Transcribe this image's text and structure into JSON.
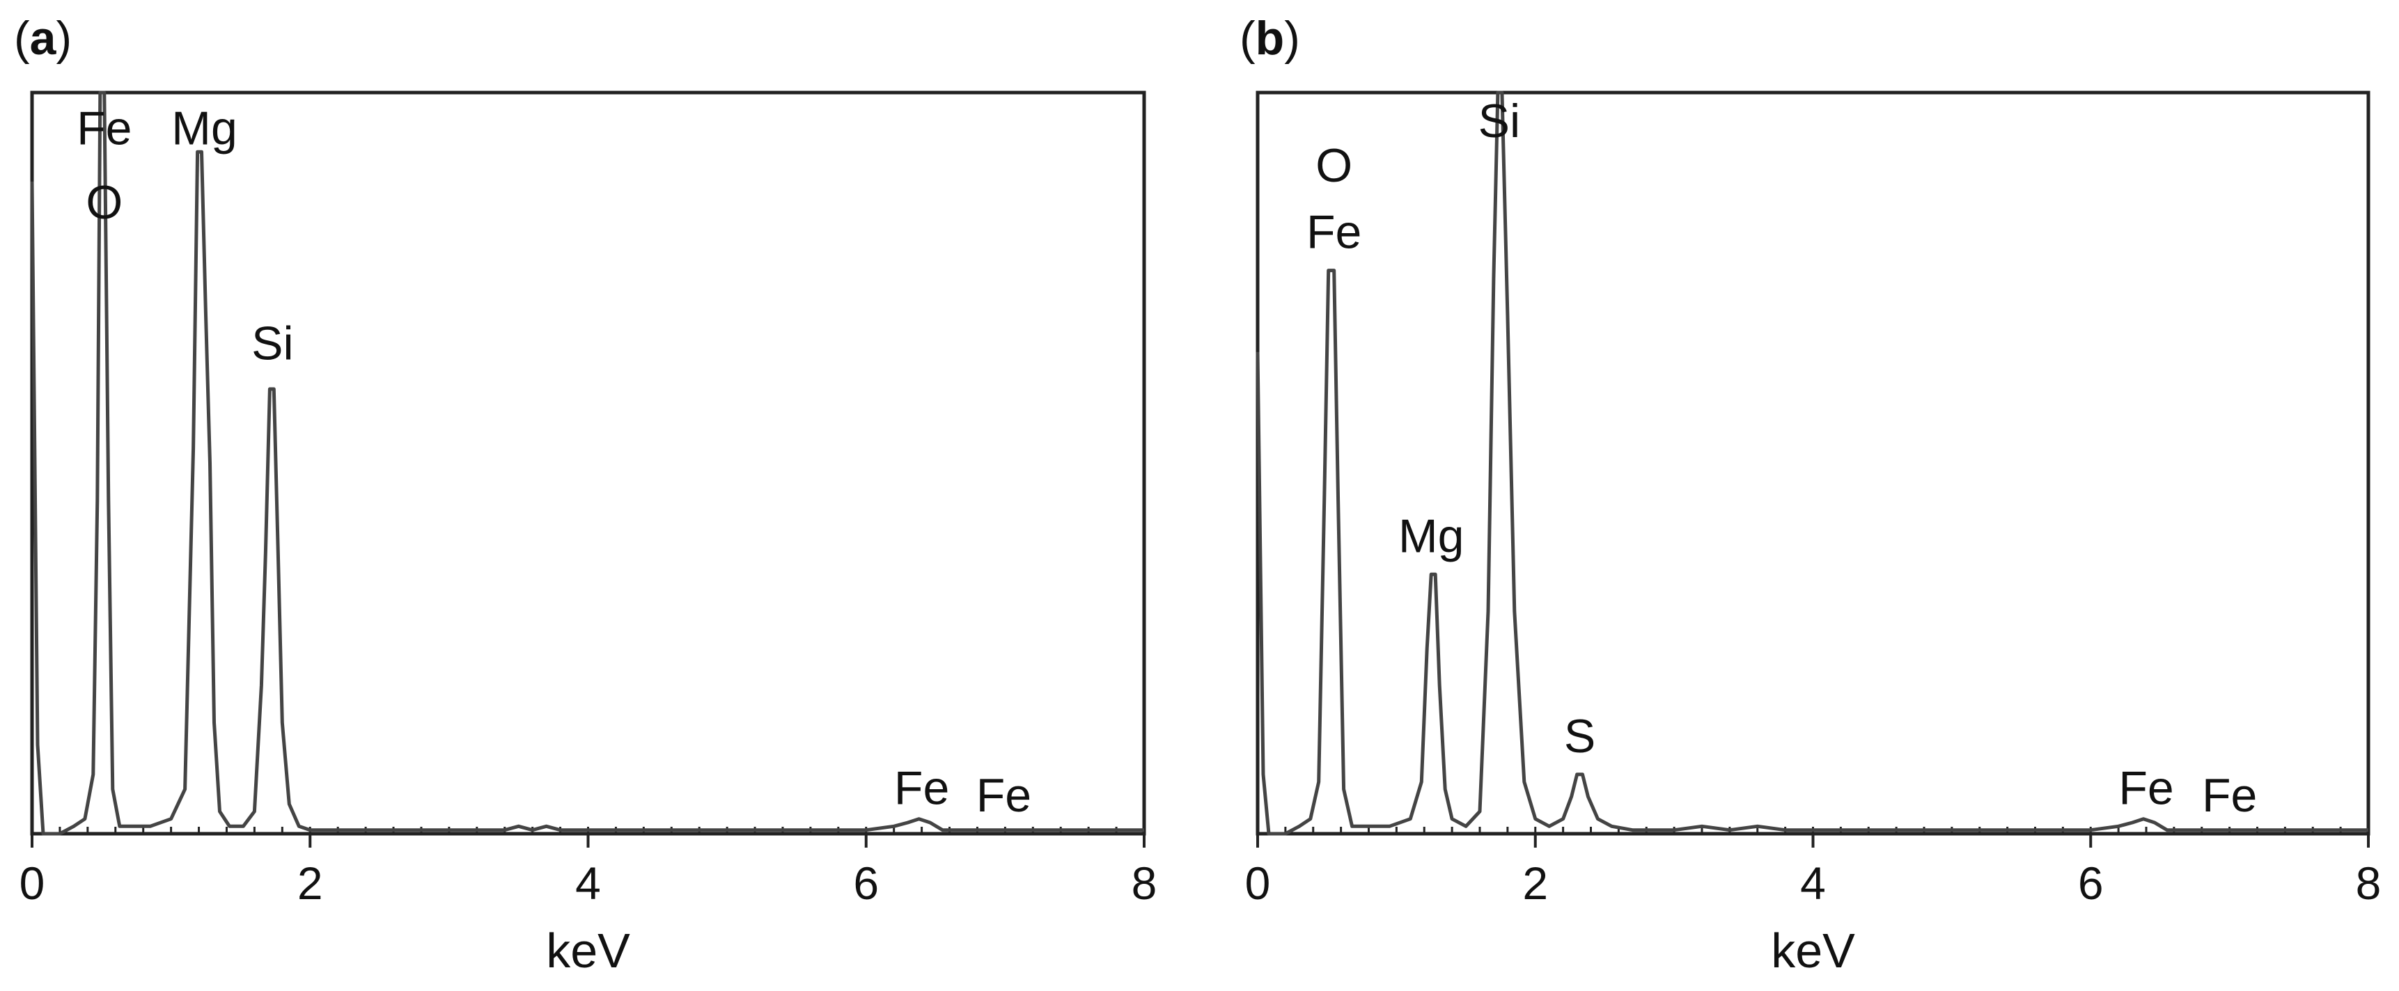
{
  "chart_data": [
    {
      "type": "line",
      "panel_label": "(a)",
      "xlabel": "keV",
      "ylabel": "",
      "xlim": [
        0,
        8
      ],
      "xticks": [
        0,
        2,
        4,
        6,
        8
      ],
      "ylim": [
        0,
        1.0
      ],
      "grid": false,
      "series": [
        {
          "x": [
            0.0,
            0.04,
            0.08,
            0.12,
            0.2,
            0.3,
            0.38,
            0.44,
            0.47,
            0.49,
            0.52,
            0.55,
            0.58,
            0.63,
            0.7,
            0.85,
            1.0,
            1.1,
            1.16,
            1.19,
            1.22,
            1.25,
            1.28,
            1.31,
            1.35,
            1.42,
            1.52,
            1.6,
            1.65,
            1.68,
            1.71,
            1.74,
            1.77,
            1.8,
            1.85,
            1.92,
            2.0,
            2.2,
            2.6,
            3.0,
            3.4,
            3.5,
            3.6,
            3.7,
            3.8,
            4.0,
            4.5,
            5.0,
            5.5,
            6.0,
            6.2,
            6.3,
            6.38,
            6.46,
            6.55,
            6.7,
            7.0,
            7.5,
            7.7,
            8.0
          ],
          "y": [
            0.88,
            0.12,
            0.0,
            0.0,
            0.0,
            0.01,
            0.02,
            0.08,
            0.45,
            1.0,
            1.0,
            0.45,
            0.06,
            0.01,
            0.01,
            0.01,
            0.02,
            0.06,
            0.52,
            0.92,
            0.92,
            0.7,
            0.5,
            0.15,
            0.03,
            0.01,
            0.01,
            0.03,
            0.2,
            0.38,
            0.6,
            0.6,
            0.38,
            0.15,
            0.04,
            0.01,
            0.005,
            0.005,
            0.005,
            0.005,
            0.005,
            0.01,
            0.005,
            0.01,
            0.005,
            0.005,
            0.005,
            0.005,
            0.005,
            0.005,
            0.01,
            0.015,
            0.02,
            0.015,
            0.005,
            0.005,
            0.005,
            0.005,
            0.005,
            0.005
          ]
        }
      ],
      "annotations": [
        {
          "text": "Fe",
          "x": 0.52,
          "y": 0.93
        },
        {
          "text": "O",
          "x": 0.52,
          "y": 0.83
        },
        {
          "text": "Mg",
          "x": 1.24,
          "y": 0.93
        },
        {
          "text": "Si",
          "x": 1.73,
          "y": 0.64
        },
        {
          "text": "Fe",
          "x": 6.4,
          "y": 0.04
        },
        {
          "text": "Fe",
          "x": 6.99,
          "y": 0.03
        }
      ]
    },
    {
      "type": "line",
      "panel_label": "(b)",
      "xlabel": "keV",
      "ylabel": "",
      "xlim": [
        0,
        8
      ],
      "xticks": [
        0,
        2,
        4,
        6,
        8
      ],
      "ylim": [
        0,
        1.0
      ],
      "grid": false,
      "series": [
        {
          "x": [
            0.0,
            0.04,
            0.08,
            0.12,
            0.2,
            0.3,
            0.38,
            0.44,
            0.48,
            0.51,
            0.55,
            0.58,
            0.62,
            0.68,
            0.8,
            0.95,
            1.1,
            1.18,
            1.22,
            1.25,
            1.28,
            1.31,
            1.35,
            1.4,
            1.5,
            1.6,
            1.66,
            1.7,
            1.73,
            1.76,
            1.8,
            1.85,
            1.92,
            2.0,
            2.1,
            2.2,
            2.26,
            2.3,
            2.34,
            2.38,
            2.45,
            2.55,
            2.7,
            3.0,
            3.2,
            3.4,
            3.6,
            3.8,
            4.0,
            4.5,
            5.0,
            5.5,
            6.0,
            6.2,
            6.3,
            6.38,
            6.46,
            6.55,
            6.7,
            6.9,
            7.1,
            7.3,
            8.0
          ],
          "y": [
            0.65,
            0.08,
            0.0,
            0.0,
            0.0,
            0.01,
            0.02,
            0.07,
            0.45,
            0.76,
            0.76,
            0.45,
            0.06,
            0.01,
            0.01,
            0.01,
            0.02,
            0.07,
            0.25,
            0.35,
            0.35,
            0.2,
            0.06,
            0.02,
            0.01,
            0.03,
            0.3,
            0.75,
            1.0,
            1.0,
            0.7,
            0.3,
            0.07,
            0.02,
            0.01,
            0.02,
            0.05,
            0.08,
            0.08,
            0.05,
            0.02,
            0.01,
            0.005,
            0.005,
            0.01,
            0.005,
            0.01,
            0.005,
            0.005,
            0.005,
            0.005,
            0.005,
            0.005,
            0.01,
            0.015,
            0.02,
            0.015,
            0.005,
            0.005,
            0.005,
            0.005,
            0.005,
            0.005
          ]
        }
      ],
      "annotations": [
        {
          "text": "O",
          "x": 0.55,
          "y": 0.88
        },
        {
          "text": "Fe",
          "x": 0.55,
          "y": 0.79
        },
        {
          "text": "Si",
          "x": 1.74,
          "y": 0.94
        },
        {
          "text": "Mg",
          "x": 1.25,
          "y": 0.38
        },
        {
          "text": "S",
          "x": 2.32,
          "y": 0.11
        },
        {
          "text": "Fe",
          "x": 6.4,
          "y": 0.04
        },
        {
          "text": "Fe",
          "x": 7.0,
          "y": 0.03
        }
      ]
    }
  ]
}
